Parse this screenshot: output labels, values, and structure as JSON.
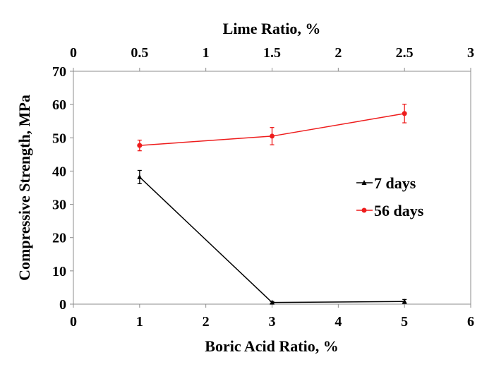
{
  "chart_data": {
    "type": "line",
    "title": "",
    "xlabel": "Boric Acid Ratio, %",
    "x2label": "Lime Ratio, %",
    "ylabel": "Compressive Strength, MPa",
    "xlim": [
      0,
      6
    ],
    "x2lim": [
      0,
      3
    ],
    "ylim": [
      0,
      70
    ],
    "x_ticks": [
      "0",
      "1",
      "2",
      "3",
      "4",
      "5",
      "6"
    ],
    "x2_ticks": [
      "0",
      "0.5",
      "1",
      "1.5",
      "2",
      "2.5",
      "3"
    ],
    "y_ticks": [
      "0",
      "10",
      "20",
      "30",
      "40",
      "50",
      "60",
      "70"
    ],
    "grid": false,
    "legend_position": "right",
    "series": [
      {
        "name": "7 days",
        "color": "#000000",
        "marker": "triangle",
        "x": [
          1,
          3,
          5
        ],
        "values": [
          38.2,
          0.5,
          0.8
        ],
        "errors": [
          2.0,
          0.3,
          0.6
        ]
      },
      {
        "name": "56 days",
        "color": "#ee1c1c",
        "marker": "circle",
        "x": [
          1,
          3,
          5
        ],
        "values": [
          47.7,
          50.5,
          57.3
        ],
        "errors": [
          1.6,
          2.6,
          2.8
        ]
      }
    ]
  }
}
